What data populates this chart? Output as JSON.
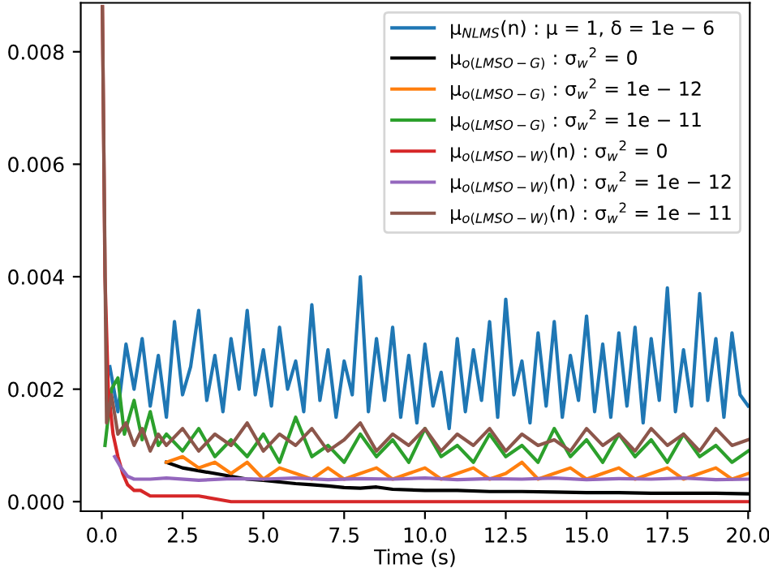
{
  "chart_data": {
    "type": "line",
    "xlabel": "Time (s)",
    "xlim": [
      -0.65,
      20.05
    ],
    "ylim": [
      -0.00017,
      0.00887
    ],
    "xticks": [
      {
        "value": 0,
        "label": "0.0"
      },
      {
        "value": 2.5,
        "label": "2.5"
      },
      {
        "value": 5,
        "label": "5.0"
      },
      {
        "value": 7.5,
        "label": "7.5"
      },
      {
        "value": 10,
        "label": "10.0"
      },
      {
        "value": 12.5,
        "label": "12.5"
      },
      {
        "value": 15,
        "label": "15.0"
      },
      {
        "value": 17.5,
        "label": "17.5"
      },
      {
        "value": 20,
        "label": "20.0"
      }
    ],
    "yticks": [
      {
        "value": 0,
        "label": "0.000"
      },
      {
        "value": 0.002,
        "label": "0.002"
      },
      {
        "value": 0.004,
        "label": "0.004"
      },
      {
        "value": 0.006,
        "label": "0.006"
      },
      {
        "value": 0.008,
        "label": "0.008"
      }
    ],
    "grid": false,
    "legend": "top right",
    "marker": "none",
    "line_style": "solid",
    "series": [
      {
        "name": "μ$_{NLMS}$(n) : μ = 1, δ = 1e − 6",
        "color": "#1f77b4",
        "x": [
          0.25,
          0.5,
          0.75,
          1,
          1.25,
          1.5,
          1.75,
          2,
          2.25,
          2.5,
          2.75,
          3,
          3.25,
          3.5,
          3.75,
          4,
          4.25,
          4.5,
          4.75,
          5,
          5.25,
          5.5,
          5.75,
          6,
          6.25,
          6.5,
          6.75,
          7,
          7.25,
          7.5,
          7.75,
          8,
          8.25,
          8.5,
          8.75,
          9,
          9.25,
          9.5,
          9.75,
          10,
          10.25,
          10.5,
          10.75,
          11,
          11.25,
          11.5,
          11.75,
          12,
          12.25,
          12.5,
          12.75,
          13,
          13.25,
          13.5,
          13.75,
          14,
          14.25,
          14.5,
          14.75,
          15,
          15.25,
          15.5,
          15.75,
          16,
          16.25,
          16.5,
          16.75,
          17,
          17.25,
          17.5,
          17.75,
          18,
          18.25,
          18.5,
          18.75,
          19,
          19.25,
          19.5,
          19.75,
          20
        ],
        "values": [
          0.0024,
          0.0016,
          0.0028,
          0.002,
          0.0029,
          0.0017,
          0.0026,
          0.0015,
          0.0032,
          0.0019,
          0.0024,
          0.0034,
          0.0018,
          0.0026,
          0.0016,
          0.0029,
          0.002,
          0.0034,
          0.0019,
          0.0027,
          0.0017,
          0.0031,
          0.002,
          0.0025,
          0.0016,
          0.0035,
          0.0018,
          0.0027,
          0.0015,
          0.0025,
          0.0019,
          0.004,
          0.0016,
          0.0029,
          0.0018,
          0.0031,
          0.0015,
          0.0026,
          0.0014,
          0.0028,
          0.0017,
          0.0023,
          0.0013,
          0.0029,
          0.0016,
          0.0027,
          0.0018,
          0.0032,
          0.0015,
          0.0036,
          0.0019,
          0.0025,
          0.0014,
          0.003,
          0.0017,
          0.0032,
          0.0015,
          0.0026,
          0.0018,
          0.0033,
          0.0016,
          0.0028,
          0.0015,
          0.003,
          0.0017,
          0.0031,
          0.0014,
          0.0029,
          0.0018,
          0.0038,
          0.0016,
          0.0027,
          0.0017,
          0.0037,
          0.0018,
          0.0029,
          0.0015,
          0.003,
          0.0019,
          0.0017
        ]
      },
      {
        "name": "μ$_{o(LMSO−G)}$ : σ$_{w}$$^{2}$ = 0",
        "color": "#000000",
        "x": [
          2,
          2.5,
          3,
          3.5,
          4,
          4.5,
          5,
          5.5,
          6,
          6.5,
          7,
          7.5,
          8,
          8.5,
          9,
          10,
          11,
          12,
          13,
          14,
          15,
          16,
          17,
          18,
          19,
          20
        ],
        "values": [
          0.0007,
          0.0006,
          0.00055,
          0.0005,
          0.00045,
          0.0004,
          0.00038,
          0.00035,
          0.00032,
          0.0003,
          0.00028,
          0.00025,
          0.00024,
          0.00026,
          0.00022,
          0.0002,
          0.0002,
          0.00018,
          0.00018,
          0.00017,
          0.00016,
          0.00016,
          0.00015,
          0.00015,
          0.00015,
          0.00014
        ]
      },
      {
        "name": "μ$_{o(LMSO−G)}$ : σ$_{w}$$^{2}$ = 1e − 12",
        "color": "#ff7f0e",
        "x": [
          2,
          2.5,
          3,
          3.5,
          4,
          4.5,
          5,
          5.5,
          6,
          6.5,
          7,
          7.5,
          8,
          8.5,
          9,
          9.5,
          10,
          10.5,
          11,
          11.5,
          12,
          12.5,
          13,
          13.5,
          14,
          14.5,
          15,
          15.5,
          16,
          16.5,
          17,
          17.5,
          18,
          18.5,
          19,
          19.5,
          20
        ],
        "values": [
          0.0007,
          0.0008,
          0.0006,
          0.0007,
          0.0005,
          0.0007,
          0.0004,
          0.0006,
          0.0005,
          0.0004,
          0.0006,
          0.0004,
          0.0005,
          0.0006,
          0.0004,
          0.0005,
          0.0006,
          0.0004,
          0.0005,
          0.0006,
          0.0004,
          0.0005,
          0.0007,
          0.0004,
          0.0005,
          0.0006,
          0.0004,
          0.0005,
          0.0006,
          0.0004,
          0.0005,
          0.0006,
          0.0004,
          0.0005,
          0.0006,
          0.0004,
          0.0005
        ]
      },
      {
        "name": "μ$_{o(LMSO−G)}$ : σ$_{w}$$^{2}$ = 1e − 11",
        "color": "#2ca02c",
        "x": [
          0.1,
          0.3,
          0.5,
          0.7,
          1,
          1.25,
          1.5,
          1.75,
          2,
          2.5,
          3,
          3.5,
          4,
          4.5,
          5,
          5.5,
          6,
          6.5,
          7,
          7.5,
          8,
          8.5,
          9,
          9.5,
          10,
          10.5,
          11,
          11.5,
          12,
          12.5,
          13,
          13.5,
          14,
          14.5,
          15,
          15.5,
          16,
          16.5,
          17,
          17.5,
          18,
          18.5,
          19,
          19.5,
          20
        ],
        "values": [
          0.001,
          0.002,
          0.0022,
          0.0012,
          0.0018,
          0.0011,
          0.0016,
          0.001,
          0.0012,
          0.0009,
          0.0013,
          0.0008,
          0.0011,
          0.0008,
          0.0012,
          0.0007,
          0.0015,
          0.0008,
          0.001,
          0.0007,
          0.0012,
          0.0008,
          0.0011,
          0.0007,
          0.0013,
          0.0008,
          0.001,
          0.0007,
          0.0012,
          0.0008,
          0.001,
          0.0007,
          0.0013,
          0.0008,
          0.0011,
          0.0007,
          0.0012,
          0.0008,
          0.0011,
          0.0007,
          0.0012,
          0.0008,
          0.001,
          0.0007,
          0.0009
        ]
      },
      {
        "name": "μ$_{o(LMSO−W)}$(n) : σ$_{w}$$^{2}$ = 0",
        "color": "#d62728",
        "x": [
          0.02,
          0.1,
          0.2,
          0.35,
          0.5,
          0.65,
          0.8,
          1,
          1.2,
          1.5,
          2,
          3,
          4,
          6,
          10,
          20
        ],
        "values": [
          0.0088,
          0.004,
          0.002,
          0.0012,
          0.0008,
          0.0005,
          0.0003,
          0.0002,
          0.0002,
          0.0001,
          0.0001,
          0.0001,
          0.0,
          0.0,
          0.0,
          0.0
        ]
      },
      {
        "name": "μ$_{o(LMSO−W)}$(n) : σ$_{w}$$^{2}$ = 1e − 12",
        "color": "#9467bd",
        "x": [
          0.4,
          0.6,
          0.8,
          1,
          1.5,
          2,
          3,
          4,
          5,
          6,
          7,
          8,
          9,
          10,
          11,
          12,
          13,
          14,
          15,
          16,
          17,
          18,
          19,
          20
        ],
        "values": [
          0.0008,
          0.0006,
          0.00045,
          0.0004,
          0.0004,
          0.00042,
          0.00038,
          0.00041,
          0.0004,
          0.00042,
          0.00039,
          0.00041,
          0.0004,
          0.00042,
          0.00039,
          0.00041,
          0.0004,
          0.00042,
          0.00039,
          0.00041,
          0.0004,
          0.00042,
          0.00039,
          0.0004
        ]
      },
      {
        "name": "μ$_{o(LMSO−W)}$(n) : σ$_{w}$$^{2}$ = 1e − 11",
        "color": "#8c564b",
        "x": [
          0.02,
          0.15,
          0.3,
          0.5,
          0.75,
          1,
          1.25,
          1.5,
          1.75,
          2,
          2.5,
          3,
          3.5,
          4,
          4.5,
          5,
          5.5,
          6,
          6.5,
          7,
          7.5,
          8,
          8.5,
          9,
          9.5,
          10,
          10.5,
          11,
          11.5,
          12,
          12.5,
          13,
          13.5,
          14,
          14.5,
          15,
          15.5,
          16,
          16.5,
          17,
          17.5,
          18,
          18.5,
          19,
          19.5,
          20
        ],
        "values": [
          0.0088,
          0.0014,
          0.0019,
          0.0012,
          0.0014,
          0.001,
          0.0013,
          0.0009,
          0.0012,
          0.001,
          0.0013,
          0.0009,
          0.0012,
          0.001,
          0.0014,
          0.0009,
          0.0012,
          0.001,
          0.0013,
          0.0009,
          0.0011,
          0.0014,
          0.0009,
          0.0012,
          0.001,
          0.0013,
          0.0009,
          0.0012,
          0.001,
          0.0013,
          0.0009,
          0.0012,
          0.001,
          0.0011,
          0.0009,
          0.0013,
          0.001,
          0.0012,
          0.0009,
          0.0013,
          0.001,
          0.0012,
          0.0009,
          0.0013,
          0.001,
          0.0011
        ]
      }
    ]
  }
}
